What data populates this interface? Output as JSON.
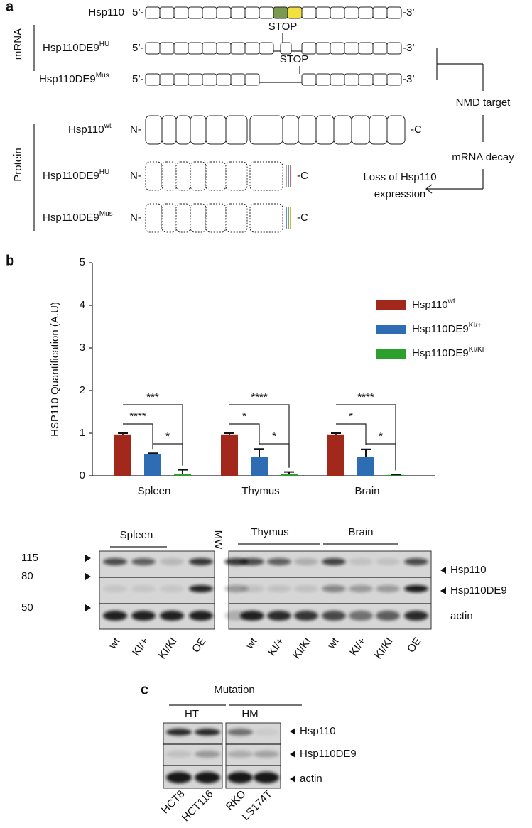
{
  "panel_a": {
    "label": "a",
    "mrna_title": "mRNA",
    "protein_title": "Protein",
    "mrna_rows": [
      {
        "name": "Hsp110",
        "five": "5’-",
        "three": "-3’"
      },
      {
        "name": "Hsp110DE9",
        "sup": "HU",
        "five": "5’-",
        "three": "-3’",
        "stop": "STOP"
      },
      {
        "name": "Hsp110DE9",
        "sup": "Mus",
        "five": "5’-",
        "three": "-3’",
        "stop": "STOP"
      }
    ],
    "protein_rows": [
      {
        "name": "Hsp110",
        "sup": "wt",
        "n": "N-",
        "c": "-C"
      },
      {
        "name": "Hsp110DE9",
        "sup": "HU",
        "n": "N-",
        "c": "-C"
      },
      {
        "name": "Hsp110DE9",
        "sup": "Mus",
        "n": "N-",
        "c": "-C"
      }
    ],
    "nmd": "NMD target",
    "decay": "mRNA decay",
    "loss": [
      "Loss of Hsp110",
      "expression"
    ]
  },
  "chart_data": {
    "type": "bar",
    "label": "b",
    "y_label": "HSP110  Quantification (A.U)",
    "categories": [
      "Spleen",
      "Thymus",
      "Brain"
    ],
    "series": [
      {
        "name": "Hsp110",
        "sup": "wt",
        "color": "#a3281c",
        "values": [
          0.97,
          0.97,
          0.97
        ],
        "errors": [
          0.03,
          0.03,
          0.03
        ]
      },
      {
        "name": "Hsp110DE9",
        "sup": "KI/+",
        "color": "#2e6db4",
        "values": [
          0.5,
          0.45,
          0.45
        ],
        "errors": [
          0.03,
          0.18,
          0.17
        ]
      },
      {
        "name": "Hsp110DE9",
        "sup": "KI/KI",
        "color": "#2ca02c",
        "values": [
          0.05,
          0.04,
          0.02
        ],
        "errors": [
          0.09,
          0.05,
          0.01
        ]
      }
    ],
    "ylim": [
      0,
      5
    ],
    "yticks": [
      0,
      1,
      2,
      3,
      4,
      5
    ],
    "significance": [
      [
        "***",
        "****",
        "*"
      ],
      [
        "****",
        "*",
        "*"
      ],
      [
        "****",
        "*",
        "*"
      ]
    ]
  },
  "blot_b": {
    "tissues": [
      "Spleen",
      "Thymus",
      "Brain"
    ],
    "mw_lane": "MW",
    "mw": [
      "115",
      "80",
      "50"
    ],
    "bands": [
      "Hsp110",
      "Hsp110DE9",
      "actin"
    ],
    "lanes_left": [
      "wt",
      "KI/+",
      "KI/KI",
      "OE"
    ],
    "lanes_right": [
      "wt",
      "KI/+",
      "KI/KI",
      "wt",
      "KI/+",
      "KI/KI",
      "OE"
    ]
  },
  "panel_c": {
    "label": "c",
    "title": "Mutation",
    "groups": [
      "HT",
      "HM"
    ],
    "bands": [
      "Hsp110",
      "Hsp110DE9",
      "actin"
    ],
    "cells": [
      "HCT8",
      "HCT116",
      "RKO",
      "LS174T"
    ]
  }
}
